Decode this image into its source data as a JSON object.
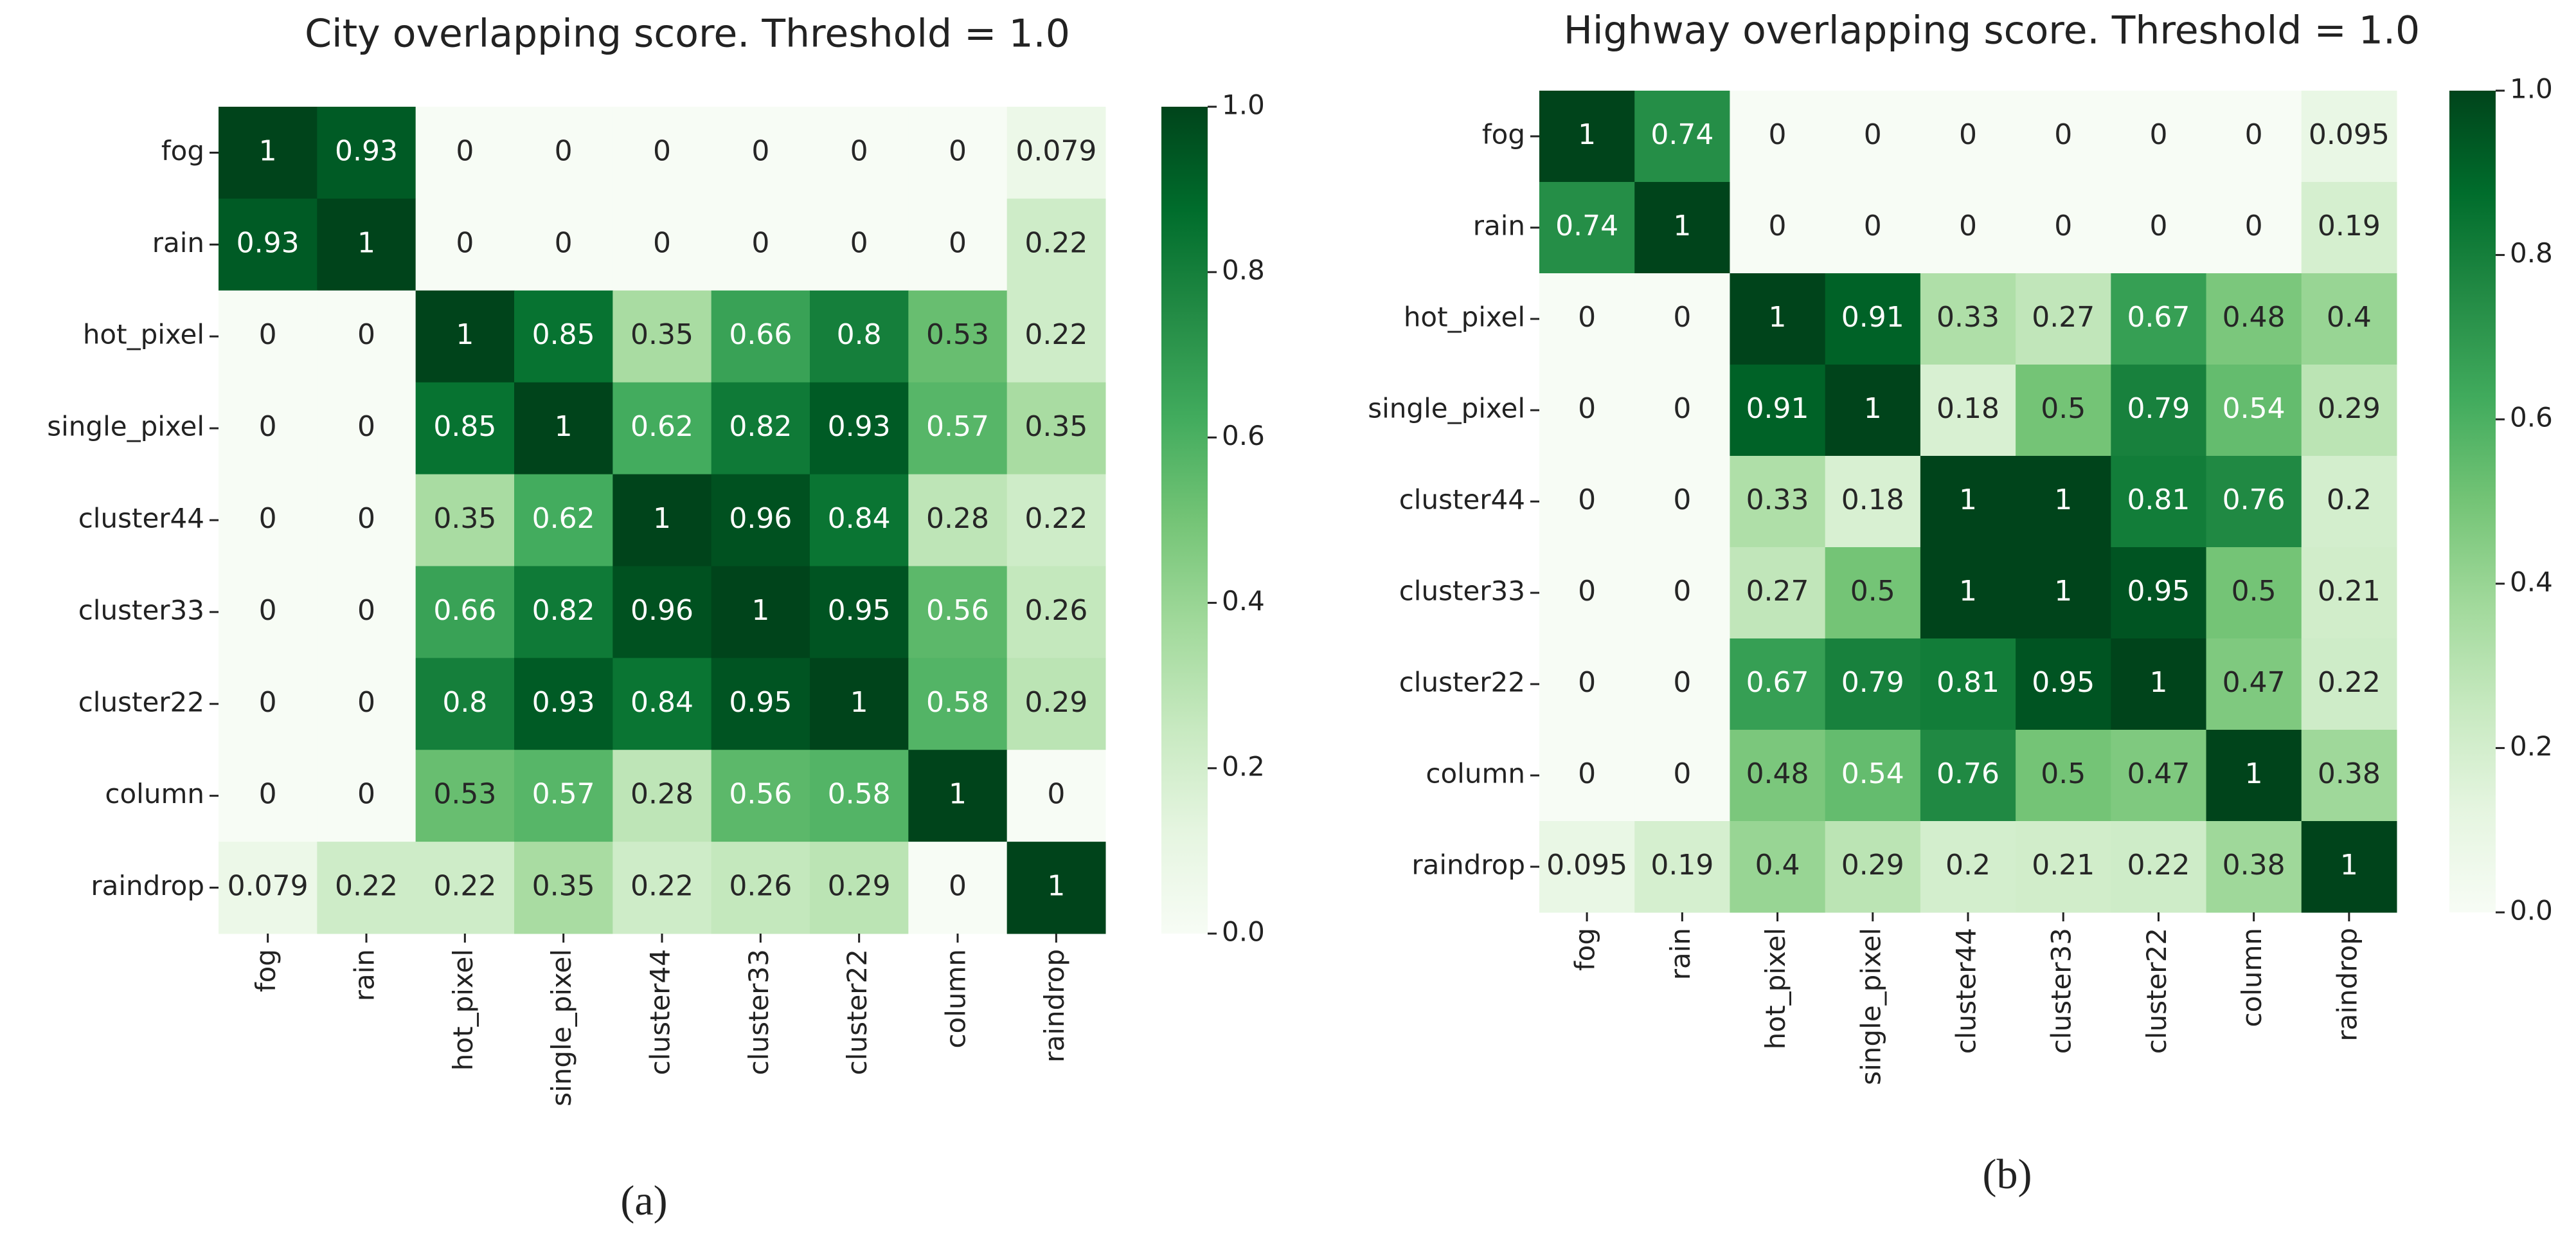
{
  "chart_data": [
    {
      "type": "heatmap",
      "title": "City overlapping score. Threshold = 1.0",
      "caption": "(a)",
      "x_categories": [
        "fog",
        "rain",
        "hot_pixel",
        "single_pixel",
        "cluster44",
        "cluster33",
        "cluster22",
        "column",
        "raindrop"
      ],
      "y_categories": [
        "fog",
        "rain",
        "hot_pixel",
        "single_pixel",
        "cluster44",
        "cluster33",
        "cluster22",
        "column",
        "raindrop"
      ],
      "values": [
        [
          1,
          0.93,
          0,
          0,
          0,
          0,
          0,
          0,
          0.079
        ],
        [
          0.93,
          1,
          0,
          0,
          0,
          0,
          0,
          0,
          0.22
        ],
        [
          0,
          0,
          1,
          0.85,
          0.35,
          0.66,
          0.8,
          0.53,
          0.22
        ],
        [
          0,
          0,
          0.85,
          1,
          0.62,
          0.82,
          0.93,
          0.57,
          0.35
        ],
        [
          0,
          0,
          0.35,
          0.62,
          1,
          0.96,
          0.84,
          0.28,
          0.22
        ],
        [
          0,
          0,
          0.66,
          0.82,
          0.96,
          1,
          0.95,
          0.56,
          0.26
        ],
        [
          0,
          0,
          0.8,
          0.93,
          0.84,
          0.95,
          1,
          0.58,
          0.29
        ],
        [
          0,
          0,
          0.53,
          0.57,
          0.28,
          0.56,
          0.58,
          1,
          0
        ],
        [
          0.079,
          0.22,
          0.22,
          0.35,
          0.22,
          0.26,
          0.29,
          0,
          1
        ]
      ],
      "vlim": [
        0,
        1
      ],
      "cbar_ticks": [
        {
          "value": 0,
          "label": "0.0"
        },
        {
          "value": 0.2,
          "label": "0.2"
        },
        {
          "value": 0.4,
          "label": "0.4"
        },
        {
          "value": 0.6,
          "label": "0.6"
        },
        {
          "value": 0.8,
          "label": "0.8"
        },
        {
          "value": 1,
          "label": "1.0"
        }
      ],
      "colormap": [
        "#f7fcf5",
        "#e5f5e0",
        "#c7e9c0",
        "#a1d99b",
        "#74c476",
        "#41ab5d",
        "#238b45",
        "#006d2c",
        "#00441b"
      ]
    },
    {
      "type": "heatmap",
      "title": "Highway overlapping score. Threshold = 1.0",
      "caption": "(b)",
      "x_categories": [
        "fog",
        "rain",
        "hot_pixel",
        "single_pixel",
        "cluster44",
        "cluster33",
        "cluster22",
        "column",
        "raindrop"
      ],
      "y_categories": [
        "fog",
        "rain",
        "hot_pixel",
        "single_pixel",
        "cluster44",
        "cluster33",
        "cluster22",
        "column",
        "raindrop"
      ],
      "values": [
        [
          1,
          0.74,
          0,
          0,
          0,
          0,
          0,
          0,
          0.095
        ],
        [
          0.74,
          1,
          0,
          0,
          0,
          0,
          0,
          0,
          0.19
        ],
        [
          0,
          0,
          1,
          0.91,
          0.33,
          0.27,
          0.67,
          0.48,
          0.4
        ],
        [
          0,
          0,
          0.91,
          1,
          0.18,
          0.5,
          0.79,
          0.54,
          0.29
        ],
        [
          0,
          0,
          0.33,
          0.18,
          1,
          1,
          0.81,
          0.76,
          0.2
        ],
        [
          0,
          0,
          0.27,
          0.5,
          1,
          1,
          0.95,
          0.5,
          0.21
        ],
        [
          0,
          0,
          0.67,
          0.79,
          0.81,
          0.95,
          1,
          0.47,
          0.22
        ],
        [
          0,
          0,
          0.48,
          0.54,
          0.76,
          0.5,
          0.47,
          1,
          0.38
        ],
        [
          0.095,
          0.19,
          0.4,
          0.29,
          0.2,
          0.21,
          0.22,
          0.38,
          1
        ]
      ],
      "vlim": [
        0,
        1
      ],
      "cbar_ticks": [
        {
          "value": 0,
          "label": "0.0"
        },
        {
          "value": 0.2,
          "label": "0.2"
        },
        {
          "value": 0.4,
          "label": "0.4"
        },
        {
          "value": 0.6,
          "label": "0.6"
        },
        {
          "value": 0.8,
          "label": "0.8"
        },
        {
          "value": 1,
          "label": "1.0"
        }
      ],
      "colormap": [
        "#f7fcf5",
        "#e5f5e0",
        "#c7e9c0",
        "#a1d99b",
        "#74c476",
        "#41ab5d",
        "#238b45",
        "#006d2c",
        "#00441b"
      ]
    }
  ]
}
